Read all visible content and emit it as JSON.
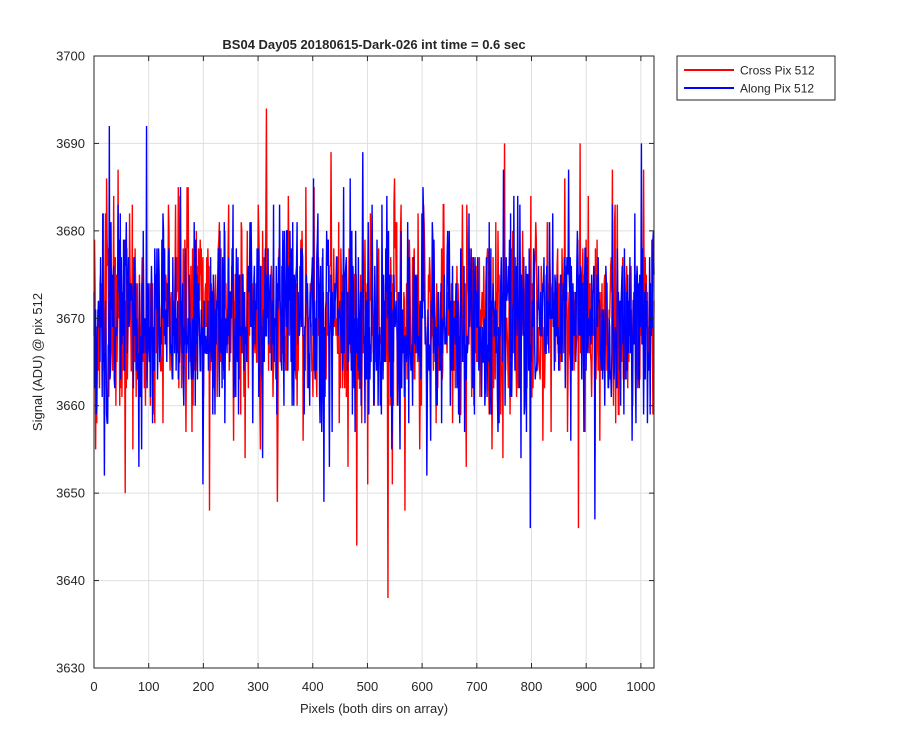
{
  "chart_data": {
    "type": "line",
    "title": "BS04 Day05 20180615-Dark-026 int time = 0.6 sec",
    "xlabel": "Pixels (both dirs on array)",
    "ylabel": "Signal (ADU) @ pix 512",
    "xlim": [
      0,
      1024
    ],
    "ylim": [
      3630,
      3700
    ],
    "x_ticks": [
      0,
      100,
      200,
      300,
      400,
      500,
      600,
      700,
      800,
      900,
      1000
    ],
    "y_ticks": [
      3630,
      3640,
      3650,
      3660,
      3670,
      3680,
      3690,
      3700
    ],
    "x_tick_labels": [
      "0",
      "100",
      "200",
      "300",
      "400",
      "500",
      "600",
      "700",
      "800",
      "900",
      "1000"
    ],
    "y_tick_labels": [
      "3630",
      "3640",
      "3650",
      "3660",
      "3670",
      "3680",
      "3690",
      "3700"
    ],
    "grid": true,
    "legend_position": "outside-top-right",
    "n_points": 1024,
    "series": [
      {
        "name": "Cross Pix 512",
        "color": "#ff0000",
        "mean": 3670,
        "std": 6,
        "notable_points": [
          {
            "x": 5,
            "y": 3658
          },
          {
            "x": 57,
            "y": 3650
          },
          {
            "x": 211,
            "y": 3648
          },
          {
            "x": 315,
            "y": 3694
          },
          {
            "x": 335,
            "y": 3649
          },
          {
            "x": 480,
            "y": 3644
          },
          {
            "x": 537,
            "y": 3638
          },
          {
            "x": 568,
            "y": 3648
          },
          {
            "x": 750,
            "y": 3690
          },
          {
            "x": 885,
            "y": 3646
          },
          {
            "x": 888,
            "y": 3690
          }
        ]
      },
      {
        "name": "Along Pix 512",
        "color": "#0000ff",
        "mean": 3670,
        "std": 6,
        "notable_points": [
          {
            "x": 28,
            "y": 3692
          },
          {
            "x": 96,
            "y": 3692
          },
          {
            "x": 420,
            "y": 3649
          },
          {
            "x": 797,
            "y": 3646
          },
          {
            "x": 915,
            "y": 3647
          },
          {
            "x": 1000,
            "y": 3690
          }
        ]
      }
    ]
  }
}
